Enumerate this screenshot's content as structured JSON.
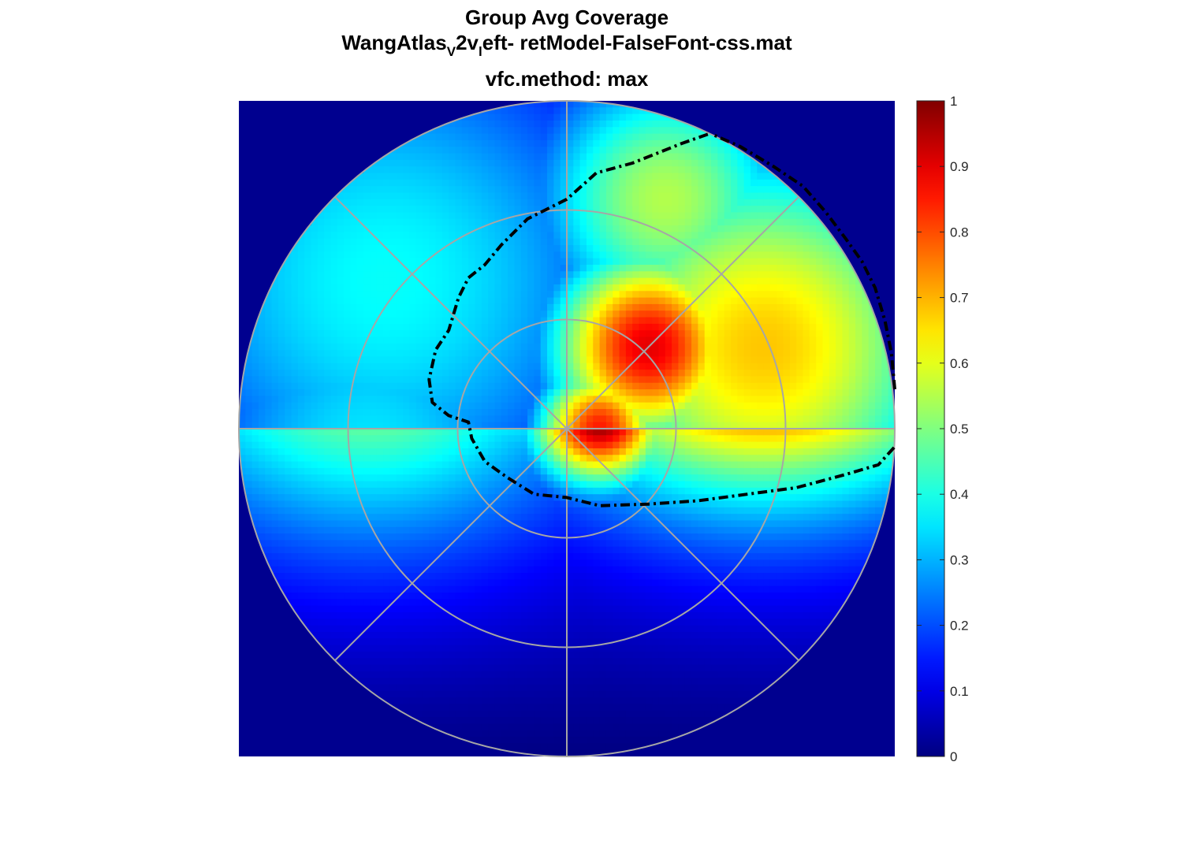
{
  "title": {
    "line1": "Group Avg Coverage",
    "line2_parts": [
      {
        "text": "WangAtlas",
        "style": "normal"
      },
      {
        "text": "V",
        "style": "sub"
      },
      {
        "text": "2v",
        "style": "normal"
      },
      {
        "text": "l",
        "style": "sub"
      },
      {
        "text": "eft- retModel-FalseFont-css.mat",
        "style": "normal"
      }
    ],
    "line3": "vfc.method: max"
  },
  "chart_data": {
    "type": "heatmap",
    "description_free": true,
    "colormap": "jet",
    "clim": [
      0,
      1
    ],
    "colorbar": {
      "ticks": [
        0,
        0.1,
        0.2,
        0.3,
        0.4,
        0.5,
        0.6,
        0.7,
        0.8,
        0.9,
        1
      ],
      "tick_labels": [
        "0",
        "0.1",
        "0.2",
        "0.3",
        "0.4",
        "0.5",
        "0.6",
        "0.7",
        "0.8",
        "0.9",
        "1"
      ],
      "location": "right"
    },
    "field": {
      "extent": [
        -1,
        1
      ],
      "background_value": 0,
      "grid_resolution": 100,
      "peaks": [
        {
          "x": 0.25,
          "y": 0.25,
          "amplitude": 0.9,
          "sigma": 0.22
        },
        {
          "x": 0.1,
          "y": 0.0,
          "amplitude": 0.85,
          "sigma": 0.14
        },
        {
          "x": 0.6,
          "y": 0.25,
          "amplitude": 0.68,
          "sigma": 0.45
        },
        {
          "x": 0.3,
          "y": 0.7,
          "amplitude": 0.55,
          "sigma": 0.3
        },
        {
          "x": -0.55,
          "y": 0.45,
          "amplitude": 0.38,
          "sigma": 0.6
        },
        {
          "x": -0.6,
          "y": -0.05,
          "amplitude": 0.35,
          "sigma": 0.45
        }
      ],
      "lower_falloff": {
        "scale": 0.55
      }
    },
    "polar_grid": {
      "rings": [
        0.333,
        0.667,
        1.0
      ],
      "spokes_deg": [
        0,
        45,
        90,
        135,
        180,
        225,
        270,
        315
      ],
      "color": "#a6a6a6"
    },
    "contour": {
      "level": 0.5,
      "style": "dash-dot",
      "color": "#000000",
      "points": [
        [
          0.43,
          0.898
        ],
        [
          0.35,
          0.87
        ],
        [
          0.2,
          0.81
        ],
        [
          0.09,
          0.78
        ],
        [
          0.0,
          0.7
        ],
        [
          -0.12,
          0.64
        ],
        [
          -0.2,
          0.56
        ],
        [
          -0.25,
          0.5
        ],
        [
          -0.3,
          0.46
        ],
        [
          -0.33,
          0.4
        ],
        [
          -0.36,
          0.3
        ],
        [
          -0.4,
          0.24
        ],
        [
          -0.42,
          0.15
        ],
        [
          -0.41,
          0.08
        ],
        [
          -0.36,
          0.04
        ],
        [
          -0.3,
          0.02
        ],
        [
          -0.29,
          -0.03
        ],
        [
          -0.25,
          -0.1
        ],
        [
          -0.18,
          -0.15
        ],
        [
          -0.1,
          -0.2
        ],
        [
          0.0,
          -0.21
        ],
        [
          0.1,
          -0.235
        ],
        [
          0.25,
          -0.23
        ],
        [
          0.4,
          -0.22
        ],
        [
          0.55,
          -0.2
        ],
        [
          0.7,
          -0.18
        ],
        [
          0.85,
          -0.14
        ],
        [
          0.95,
          -0.11
        ],
        [
          1.0,
          -0.055
        ]
      ],
      "right_edge_points": [
        [
          1.0,
          0.12
        ],
        [
          0.99,
          0.23
        ],
        [
          0.97,
          0.33
        ],
        [
          0.94,
          0.43
        ],
        [
          0.9,
          0.51
        ],
        [
          0.85,
          0.58
        ],
        [
          0.79,
          0.66
        ],
        [
          0.72,
          0.74
        ],
        [
          0.63,
          0.8
        ],
        [
          0.53,
          0.86
        ],
        [
          0.45,
          0.895
        ]
      ]
    },
    "xlim": [
      -1,
      1
    ],
    "ylim": [
      -1,
      1
    ]
  },
  "colors": {
    "background": "#ffffff",
    "outside_disc": "#00008f",
    "grid": "#a6a6a6",
    "axis": "#262626"
  }
}
